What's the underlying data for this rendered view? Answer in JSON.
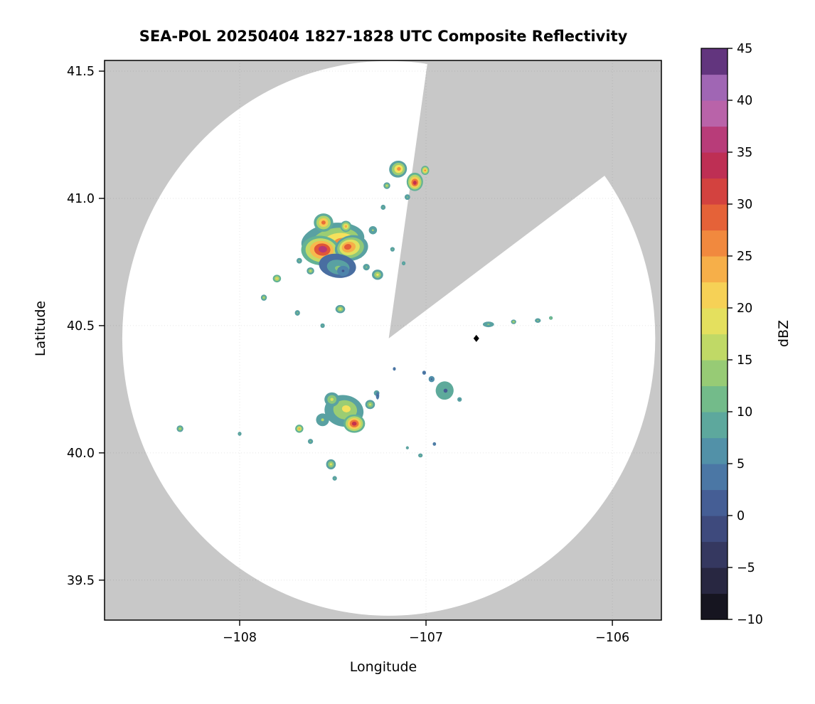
{
  "chart_data": {
    "type": "heatmap",
    "title": "SEA-POL 20250404 1827-1828 UTC Composite Reflectivity",
    "xlabel": "Longitude",
    "ylabel": "Latitude",
    "xlim": [
      -108.725,
      -105.737
    ],
    "ylim": [
      39.343,
      41.542
    ],
    "xticks": [
      {
        "v": -108,
        "label": "−108"
      },
      {
        "v": -107,
        "label": "−107"
      },
      {
        "v": -106,
        "label": "−106"
      }
    ],
    "yticks": [
      {
        "v": 39.5,
        "label": "39.5"
      },
      {
        "v": 40.0,
        "label": "40.0"
      },
      {
        "v": 40.5,
        "label": "40.5"
      },
      {
        "v": 41.0,
        "label": "41.0"
      },
      {
        "v": 41.5,
        "label": "41.5"
      }
    ],
    "grid": {
      "on": true,
      "color": "rgba(0,0,0,0.10)",
      "dash": "1,3"
    },
    "colors": {
      "outside_coverage": "#c8c8c8",
      "inside_coverage": "#ffffff",
      "frame": "#000000"
    },
    "radar_coverage": {
      "center_lon": -107.2,
      "center_lat": 40.45,
      "radius_lon_deg": 1.43,
      "radius_lat_deg": 1.09,
      "missing_sector_azimuth_deg": [
        8,
        53
      ]
    },
    "site_marker": {
      "lon": -106.73,
      "lat": 40.45,
      "shape": "diamond",
      "color": "#000000"
    },
    "colorbar": {
      "label": "dBZ",
      "min": -10,
      "max": 45,
      "segment_step": 2.5,
      "ticks": [
        {
          "v": -10,
          "label": "−10"
        },
        {
          "v": -5,
          "label": "−5"
        },
        {
          "v": 0,
          "label": "0"
        },
        {
          "v": 5,
          "label": "5"
        },
        {
          "v": 10,
          "label": "10"
        },
        {
          "v": 15,
          "label": "15"
        },
        {
          "v": 20,
          "label": "20"
        },
        {
          "v": 25,
          "label": "25"
        },
        {
          "v": 30,
          "label": "30"
        },
        {
          "v": 35,
          "label": "35"
        },
        {
          "v": 40,
          "label": "40"
        },
        {
          "v": 45,
          "label": "45"
        }
      ],
      "cmap_stops": [
        [
          -10.0,
          "#0c0c10"
        ],
        [
          -7.5,
          "#201e30"
        ],
        [
          -5.0,
          "#2f2f51"
        ],
        [
          -2.5,
          "#3a416f"
        ],
        [
          0.0,
          "#42538b"
        ],
        [
          2.5,
          "#48699e"
        ],
        [
          5.0,
          "#4e84ab"
        ],
        [
          7.5,
          "#569da5"
        ],
        [
          10.0,
          "#63b295"
        ],
        [
          12.5,
          "#83c37e"
        ],
        [
          15.0,
          "#abd36c"
        ],
        [
          17.5,
          "#d4df60"
        ],
        [
          20.0,
          "#f4e15c"
        ],
        [
          22.5,
          "#f7c04f"
        ],
        [
          25.0,
          "#f59d43"
        ],
        [
          27.5,
          "#ec7439"
        ],
        [
          30.0,
          "#dd4f36"
        ],
        [
          32.5,
          "#c93448"
        ],
        [
          35.0,
          "#b3295f"
        ],
        [
          37.5,
          "#bc4f92"
        ],
        [
          40.0,
          "#b577c0"
        ],
        [
          42.5,
          "#8a55a8"
        ],
        [
          45.0,
          "#3a1453"
        ]
      ]
    },
    "echo_format": "[lon, lat, rx_deg, ry_deg, rot_deg, dbz_edge, dbz_core, core_offset_x, core_offset_y]",
    "echoes": [
      [
        -107.5,
        40.835,
        0.17,
        0.068,
        -8,
        8,
        26,
        0.25,
        -0.15
      ],
      [
        -107.565,
        40.795,
        0.105,
        0.058,
        5,
        10,
        36,
        0.1,
        0.1
      ],
      [
        -107.4,
        40.805,
        0.09,
        0.05,
        -12,
        8,
        29,
        -0.2,
        0.15
      ],
      [
        -107.475,
        40.735,
        0.1,
        0.047,
        8,
        3,
        13,
        0.1,
        -0.2
      ],
      [
        -107.445,
        40.715,
        0.032,
        0.02,
        0,
        5,
        0,
        0,
        0
      ],
      [
        -107.55,
        40.905,
        0.052,
        0.036,
        0,
        9,
        28,
        0,
        0
      ],
      [
        -107.43,
        40.89,
        0.03,
        0.022,
        0,
        9,
        24,
        0,
        0
      ],
      [
        -107.285,
        40.875,
        0.022,
        0.016,
        0,
        8,
        16,
        0,
        0
      ],
      [
        -107.26,
        40.7,
        0.03,
        0.02,
        0,
        8,
        20,
        0,
        0
      ],
      [
        -107.32,
        40.73,
        0.018,
        0.013,
        0,
        8,
        14,
        0,
        0
      ],
      [
        -107.62,
        40.715,
        0.02,
        0.014,
        0,
        8,
        18,
        0,
        0
      ],
      [
        -107.68,
        40.755,
        0.015,
        0.011,
        0,
        8,
        14,
        0,
        0
      ],
      [
        -107.15,
        41.115,
        0.048,
        0.033,
        -15,
        8,
        26,
        0.1,
        0
      ],
      [
        -107.06,
        41.065,
        0.044,
        0.036,
        0,
        10,
        33,
        0,
        -0.1
      ],
      [
        -107.005,
        41.11,
        0.022,
        0.018,
        0,
        10,
        26,
        0,
        0
      ],
      [
        -107.21,
        41.05,
        0.018,
        0.013,
        0,
        8,
        18,
        0,
        0
      ],
      [
        -107.1,
        41.005,
        0.015,
        0.011,
        0,
        8,
        14,
        0,
        0
      ],
      [
        -107.23,
        40.965,
        0.013,
        0.01,
        0,
        8,
        12,
        0,
        0
      ],
      [
        -107.8,
        40.685,
        0.022,
        0.015,
        0,
        10,
        21,
        0,
        0
      ],
      [
        -107.87,
        40.61,
        0.016,
        0.012,
        0,
        8,
        17,
        0,
        0
      ],
      [
        -107.69,
        40.55,
        0.014,
        0.011,
        0,
        8,
        14,
        0,
        0
      ],
      [
        -107.46,
        40.565,
        0.026,
        0.016,
        0,
        8,
        20,
        0,
        0
      ],
      [
        -107.555,
        40.5,
        0.012,
        0.009,
        0,
        8,
        12,
        0,
        0
      ],
      [
        -107.44,
        40.165,
        0.105,
        0.062,
        8,
        8,
        20,
        0.1,
        0.15
      ],
      [
        -107.385,
        40.115,
        0.058,
        0.036,
        0,
        10,
        33,
        0,
        0
      ],
      [
        -107.505,
        40.21,
        0.04,
        0.028,
        0,
        8,
        18,
        0,
        0
      ],
      [
        -107.555,
        40.13,
        0.035,
        0.025,
        0,
        8,
        16,
        0,
        0
      ],
      [
        -107.3,
        40.19,
        0.026,
        0.018,
        0,
        8,
        18,
        0,
        0
      ],
      [
        -107.265,
        40.235,
        0.015,
        0.011,
        0,
        8,
        12,
        0,
        0
      ],
      [
        -107.68,
        40.095,
        0.022,
        0.016,
        0,
        10,
        24,
        0,
        0
      ],
      [
        -107.62,
        40.045,
        0.014,
        0.01,
        0,
        8,
        14,
        0,
        0
      ],
      [
        -107.51,
        39.955,
        0.026,
        0.02,
        0,
        8,
        19,
        0,
        0
      ],
      [
        -107.49,
        39.9,
        0.012,
        0.009,
        0,
        8,
        12,
        0,
        0
      ],
      [
        -106.9,
        40.245,
        0.048,
        0.036,
        10,
        9,
        1,
        0.1,
        0
      ],
      [
        -106.97,
        40.29,
        0.016,
        0.012,
        0,
        6,
        0,
        0,
        0
      ],
      [
        -107.01,
        40.315,
        0.01,
        0.008,
        0,
        4,
        0,
        0,
        0
      ],
      [
        -106.82,
        40.21,
        0.012,
        0.009,
        0,
        8,
        2,
        0,
        0
      ],
      [
        -107.26,
        40.225,
        0.009,
        0.015,
        0,
        4,
        0,
        0,
        0
      ],
      [
        -107.17,
        40.33,
        0.008,
        0.007,
        0,
        4,
        0,
        0,
        0
      ],
      [
        -106.665,
        40.505,
        0.03,
        0.011,
        0,
        8,
        14,
        0,
        0
      ],
      [
        -106.53,
        40.515,
        0.014,
        0.009,
        0,
        8,
        17,
        0,
        0
      ],
      [
        -106.4,
        40.52,
        0.016,
        0.009,
        0,
        8,
        15,
        0,
        0
      ],
      [
        -106.33,
        40.53,
        0.01,
        0.007,
        0,
        10,
        18,
        0,
        0
      ],
      [
        -108.32,
        40.095,
        0.018,
        0.013,
        0,
        8,
        17,
        0,
        0
      ],
      [
        -108.0,
        40.075,
        0.01,
        0.008,
        0,
        8,
        13,
        0,
        0
      ],
      [
        -107.03,
        39.99,
        0.012,
        0.008,
        0,
        8,
        13,
        0,
        0
      ],
      [
        -106.955,
        40.035,
        0.009,
        0.007,
        0,
        4,
        9,
        0,
        0
      ],
      [
        -107.1,
        40.02,
        0.008,
        0.006,
        0,
        8,
        12,
        0,
        0
      ],
      [
        -107.18,
        40.8,
        0.012,
        0.009,
        0,
        8,
        14,
        0,
        0
      ],
      [
        -107.12,
        40.745,
        0.01,
        0.008,
        0,
        8,
        12,
        0,
        0
      ]
    ]
  }
}
